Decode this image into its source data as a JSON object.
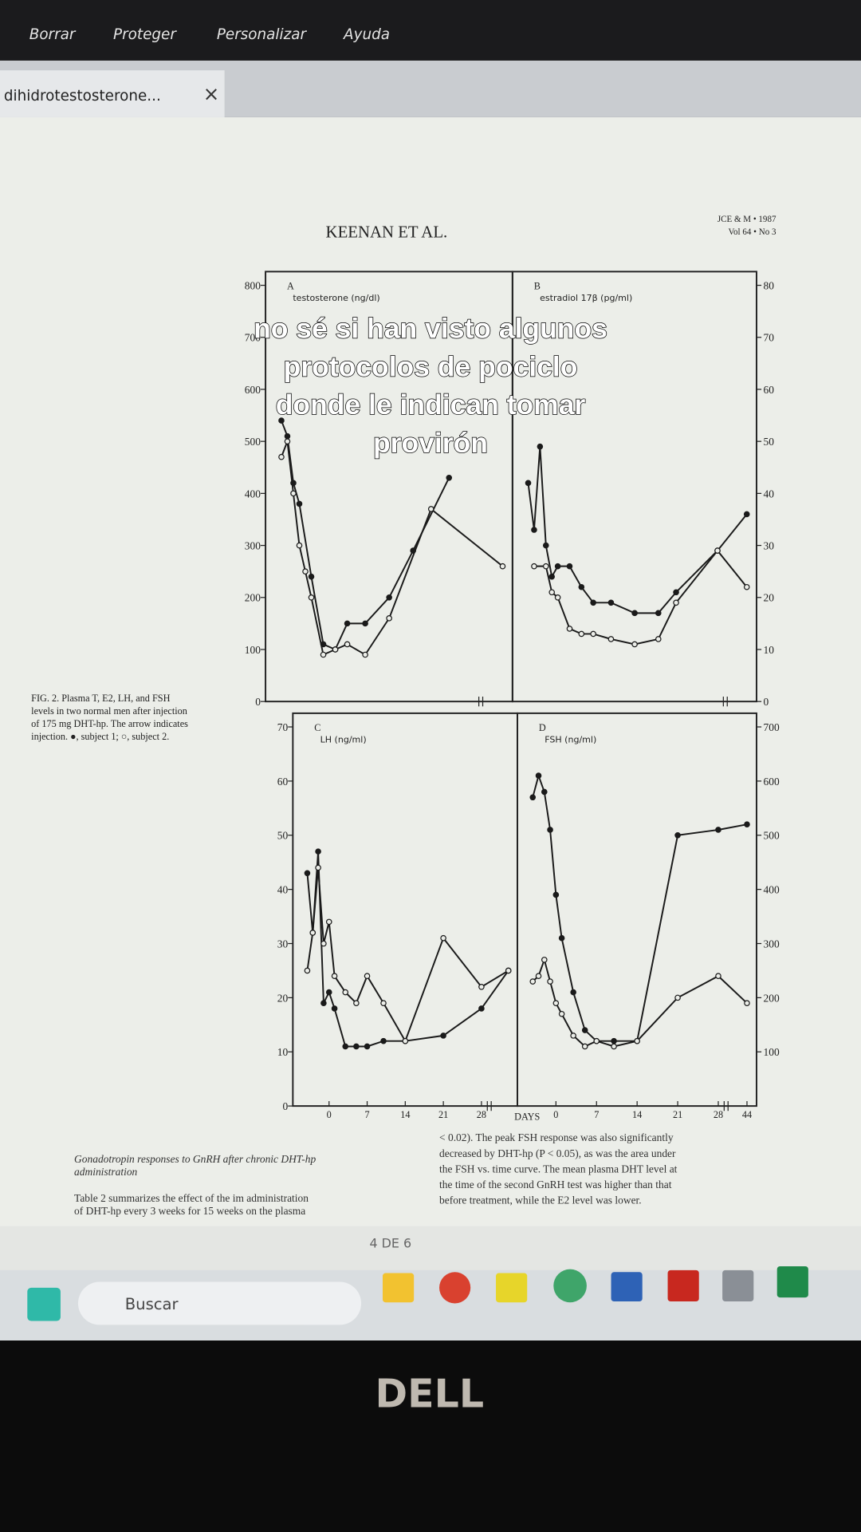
{
  "menu": [
    "Borrar",
    "Proteger",
    "Personalizar",
    "Ayuda"
  ],
  "tab": {
    "title": "dihidrotestosterone..."
  },
  "document": {
    "running_head": "KEENAN ET AL.",
    "journal": [
      "JCE & M • 1987",
      "Vol 64 • No 3"
    ],
    "figure_caption": [
      "FIG. 2. Plasma T, E2, LH, and FSH",
      "levels in two normal men after injection",
      "of 175 mg DHT-hp. The arrow indicates",
      "injection. ●, subject 1; ○, subject 2."
    ],
    "left_column": [
      "Gonadotropin responses to GnRH after chronic DHT-hp",
      "administration",
      "Table 2 summarizes the effect of the im administration",
      "of DHT-hp every 3 weeks for 15 weeks on the plasma"
    ],
    "right_column": [
      "< 0.02). The peak FSH response was also significantly",
      "decreased by DHT-hp (P < 0.05), as was the area under",
      "the FSH vs. time curve. The mean plasma DHT level at",
      "the time of the second GnRH test was higher than that",
      "before treatment, while the E2 level was lower."
    ],
    "x_label": "DAYS"
  },
  "pager": "4 DE 6",
  "taskbar": {
    "search": "Buscar"
  },
  "overlay_caption": [
    "no sé si han visto algunos",
    "protocolos de pociclo",
    "donde le indican tomar",
    "provirón"
  ],
  "monitor_brand": "DELL",
  "chart_data": [
    {
      "type": "line",
      "title": "A",
      "ylabel": "testosterone (ng/dl)",
      "axis_side": "left",
      "xlim": [
        -5,
        44
      ],
      "ylim": [
        0,
        800
      ],
      "yticks": [
        0,
        100,
        200,
        300,
        400,
        500,
        600,
        700,
        800
      ],
      "series": [
        {
          "color": "#1a1a1a",
          "marker": "filled",
          "x": [
            -4,
            -3,
            -2,
            -1,
            1,
            3,
            5,
            7,
            10,
            14,
            18,
            24
          ],
          "values": [
            540,
            510,
            420,
            380,
            240,
            110,
            100,
            150,
            150,
            200,
            290,
            430
          ]
        },
        {
          "color": "#1a1a1a",
          "marker": "open",
          "x": [
            -4,
            -3,
            -2,
            -1,
            0,
            1,
            3,
            5,
            7,
            10,
            14,
            21,
            44
          ],
          "values": [
            470,
            500,
            400,
            300,
            250,
            200,
            90,
            100,
            110,
            90,
            160,
            370,
            260
          ]
        }
      ]
    },
    {
      "type": "line",
      "title": "B",
      "ylabel": "estradiol 17β (pg/ml)",
      "axis_side": "right",
      "xlim": [
        -5,
        44
      ],
      "ylim": [
        0,
        80
      ],
      "yticks": [
        0,
        10,
        20,
        30,
        40,
        50,
        60,
        70,
        80
      ],
      "series": [
        {
          "color": "#1a1a1a",
          "marker": "filled",
          "x": [
            -4,
            -3,
            -2,
            -1,
            0,
            1,
            3,
            5,
            7,
            10,
            14,
            18,
            21,
            28,
            44
          ],
          "values": [
            42,
            33,
            49,
            30,
            24,
            26,
            26,
            22,
            19,
            19,
            17,
            17,
            21,
            29,
            36
          ]
        },
        {
          "color": "#1a1a1a",
          "marker": "open",
          "x": [
            -3,
            -1,
            0,
            1,
            3,
            5,
            7,
            10,
            14,
            18,
            21,
            28,
            44
          ],
          "values": [
            26,
            26,
            21,
            20,
            14,
            13,
            13,
            12,
            11,
            12,
            19,
            29,
            22
          ]
        }
      ]
    },
    {
      "type": "line",
      "title": "C",
      "ylabel": "LH (ng/ml)",
      "axis_side": "left",
      "xlim": [
        -5,
        44
      ],
      "ylim": [
        0,
        70
      ],
      "yticks": [
        0,
        10,
        20,
        30,
        40,
        50,
        60,
        70
      ],
      "xticks": [
        0,
        7,
        14,
        21,
        28
      ],
      "series": [
        {
          "color": "#1a1a1a",
          "marker": "filled",
          "x": [
            -4,
            -3,
            -2,
            -1,
            0,
            1,
            3,
            5,
            7,
            10,
            14,
            21,
            28,
            44
          ],
          "values": [
            43,
            32,
            47,
            19,
            21,
            18,
            11,
            11,
            11,
            12,
            12,
            13,
            18,
            25
          ]
        },
        {
          "color": "#1a1a1a",
          "marker": "open",
          "x": [
            -4,
            -3,
            -2,
            -1,
            0,
            1,
            3,
            5,
            7,
            10,
            14,
            21,
            28,
            44
          ],
          "values": [
            25,
            32,
            44,
            30,
            34,
            24,
            21,
            19,
            24,
            19,
            12,
            31,
            22,
            25
          ]
        }
      ]
    },
    {
      "type": "line",
      "title": "D",
      "ylabel": "FSH (ng/ml)",
      "axis_side": "right",
      "xlim": [
        -5,
        44
      ],
      "ylim": [
        0,
        700
      ],
      "yticks": [
        100,
        200,
        300,
        400,
        500,
        600,
        700
      ],
      "xticks": [
        0,
        7,
        14,
        21,
        28,
        44
      ],
      "series": [
        {
          "color": "#1a1a1a",
          "marker": "filled",
          "x": [
            -4,
            -3,
            -2,
            -1,
            0,
            1,
            3,
            5,
            7,
            10,
            14,
            21,
            28,
            44
          ],
          "values": [
            570,
            610,
            580,
            510,
            390,
            310,
            210,
            140,
            120,
            120,
            120,
            500,
            510,
            520
          ]
        },
        {
          "color": "#1a1a1a",
          "marker": "open",
          "x": [
            -4,
            -3,
            -2,
            -1,
            0,
            1,
            3,
            5,
            7,
            10,
            14,
            21,
            28,
            44
          ],
          "values": [
            230,
            240,
            270,
            230,
            190,
            170,
            130,
            110,
            120,
            110,
            120,
            200,
            240,
            190
          ]
        }
      ]
    }
  ]
}
